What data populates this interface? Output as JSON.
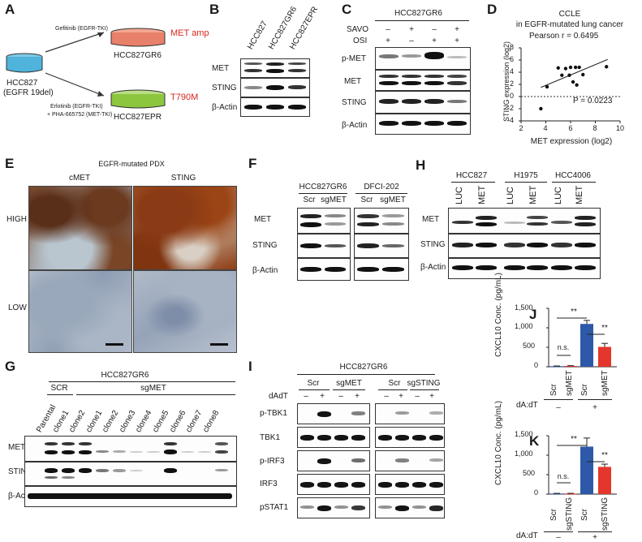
{
  "panels": {
    "A": {
      "letter": "A",
      "parent_line1": "HCC827",
      "parent_line2": "(EGFR 19del)",
      "arrow_top": "Gefitinib (EGFR-TKI)",
      "arrow_bottom_1": "Erlotinib (EGFR-TKI)",
      "arrow_bottom_2": "+ PHA-665752 (MET-TKI)",
      "dish_top_tag": "MET amp",
      "dish_top_name": "HCC827GR6",
      "dish_bottom_tag": "T790M",
      "dish_bottom_name": "HCC827EPR",
      "colors": {
        "dish_top": "#e9806a",
        "dish_bottom": "#8cc63f",
        "parent": "#7fc9e6",
        "tag": "#d7261e"
      }
    },
    "B": {
      "letter": "B",
      "lanes": [
        "HCC827",
        "HCC827GR6",
        "HCC827EPR"
      ],
      "rows": [
        "MET",
        "STING",
        "β-Actin"
      ]
    },
    "C": {
      "letter": "C",
      "cell_line": "HCC827GR6",
      "savo_label": "SAVO",
      "osi_label": "OSI",
      "savo": [
        "–",
        "+",
        "–",
        "+"
      ],
      "osi": [
        "+",
        "–",
        "+",
        "+"
      ],
      "rows": [
        "p-MET",
        "MET",
        "STING",
        "β-Actin"
      ]
    },
    "D": {
      "letter": "D",
      "title_1": "CCLE",
      "title_2": "in EGFR-mutated lung cancer",
      "pearson": "Pearson r = 0.6495",
      "pvalue": "P = 0.0223",
      "xlabel": "MET expression (log2)",
      "ylabel": "STING expression (log2)",
      "xticks": [
        "2",
        "4",
        "6",
        "8",
        "10"
      ],
      "yticks": [
        "8",
        "6",
        "4",
        "2",
        "0",
        "-2",
        "-4"
      ]
    },
    "E": {
      "letter": "E",
      "title": "EGFR-mutated PDX",
      "col1": "cMET",
      "col2": "STING",
      "row1": "HIGH",
      "row2": "LOW"
    },
    "F": {
      "letter": "F",
      "group1": "HCC827GR6",
      "group2": "DFCI-202",
      "lanes": [
        "Scr",
        "sgMET",
        "Scr",
        "sgMET"
      ],
      "rows": [
        "MET",
        "STING",
        "β-Actin"
      ]
    },
    "G": {
      "letter": "G",
      "cell_line": "HCC827GR6",
      "scr": "SCR",
      "sgmet": "sgMET",
      "lanes": [
        "Parental",
        "clone1",
        "clone2",
        "clone1",
        "clone2",
        "clone3",
        "clone4",
        "clone5",
        "clone6",
        "clone7",
        "clone8"
      ],
      "rows": [
        "MET",
        "STING",
        "β-Actin"
      ]
    },
    "H": {
      "letter": "H",
      "groups": [
        "HCC827",
        "H1975",
        "HCC4006"
      ],
      "lanes": [
        "LUC",
        "MET",
        "LUC",
        "MET",
        "LUC",
        "MET"
      ],
      "rows": [
        "MET",
        "STING",
        "β-Actin"
      ]
    },
    "I": {
      "letter": "I",
      "cell_line": "HCC827GR6",
      "groups": [
        "Scr",
        "sgMET",
        "Scr",
        "sgSTING"
      ],
      "dadt_label": "dAdT",
      "dadt": [
        "–",
        "+",
        "–",
        "+",
        "–",
        "+",
        "–",
        "+"
      ],
      "rows": [
        "p-TBK1",
        "TBK1",
        "p-IRF3",
        "IRF3",
        "pSTAT1",
        "STAT1",
        "MET",
        "STING",
        "β-Actin"
      ]
    },
    "J": {
      "letter": "J",
      "ylabel": "CXCL10 Conc. (pg/mL)",
      "yticks": [
        "1,500",
        "1,000",
        "500",
        "0"
      ],
      "ns": "n.s.",
      "sig1": "**",
      "sig2": "**",
      "bars": [
        "Scr",
        "sgMET",
        "Scr",
        "sgMET"
      ],
      "dadt_label": "dA:dT",
      "minus": "–",
      "plus": "+"
    },
    "K": {
      "letter": "K",
      "ylabel": "CXCL10 Conc. (pg/mL)",
      "yticks": [
        "1,500",
        "1,000",
        "500",
        "0"
      ],
      "ns": "n.s.",
      "sig1": "**",
      "sig2": "**",
      "bars": [
        "Scr",
        "sgSTING",
        "Scr",
        "sgSTING"
      ],
      "dadt_label": "dA:dT",
      "minus": "–",
      "plus": "+"
    }
  },
  "chart_data": [
    {
      "panel": "D",
      "type": "scatter",
      "title": "CCLE in EGFR-mutated lung cancer",
      "xlabel": "MET expression (log2)",
      "ylabel": "STING expression (log2)",
      "xlim": [
        2,
        10
      ],
      "ylim": [
        -4,
        8
      ],
      "x": [
        3.6,
        4.1,
        5.0,
        5.6,
        5.3,
        6.0,
        6.4,
        5.9,
        6.7,
        6.2,
        6.5,
        7.0,
        8.9
      ],
      "y": [
        -2.0,
        1.6,
        4.7,
        4.6,
        3.5,
        4.8,
        4.8,
        3.5,
        4.8,
        2.4,
        1.9,
        3.6,
        4.9
      ],
      "fit_line": {
        "x": [
          3.6,
          9.0
        ],
        "y": [
          1.5,
          6.1
        ]
      },
      "reference_line_y": 0,
      "annotations": [
        "Pearson r = 0.6495",
        "P = 0.0223"
      ]
    },
    {
      "panel": "J",
      "type": "bar",
      "categories": [
        "Scr",
        "sgMET",
        "Scr",
        "sgMET"
      ],
      "series": [
        {
          "values": [
            15,
            20,
            1100,
            510
          ],
          "errors": [
            5,
            8,
            90,
            90
          ]
        }
      ],
      "condition": [
        "dA:dT –",
        "dA:dT –",
        "dA:dT +",
        "dA:dT +"
      ],
      "ylabel": "CXCL10 Conc. (pg/mL)",
      "ylim": [
        0,
        1500
      ],
      "colors": [
        "#2e59a8",
        "#e3362c",
        "#2e59a8",
        "#e3362c"
      ]
    },
    {
      "panel": "K",
      "type": "bar",
      "categories": [
        "Scr",
        "sgSTING",
        "Scr",
        "sgSTING"
      ],
      "series": [
        {
          "values": [
            15,
            15,
            1220,
            700
          ],
          "errors": [
            5,
            5,
            220,
            70
          ]
        }
      ],
      "condition": [
        "dA:dT –",
        "dA:dT –",
        "dA:dT +",
        "dA:dT +"
      ],
      "ylabel": "CXCL10 Conc. (pg/mL)",
      "ylim": [
        0,
        1500
      ],
      "colors": [
        "#2e59a8",
        "#e3362c",
        "#2e59a8",
        "#e3362c"
      ]
    }
  ]
}
